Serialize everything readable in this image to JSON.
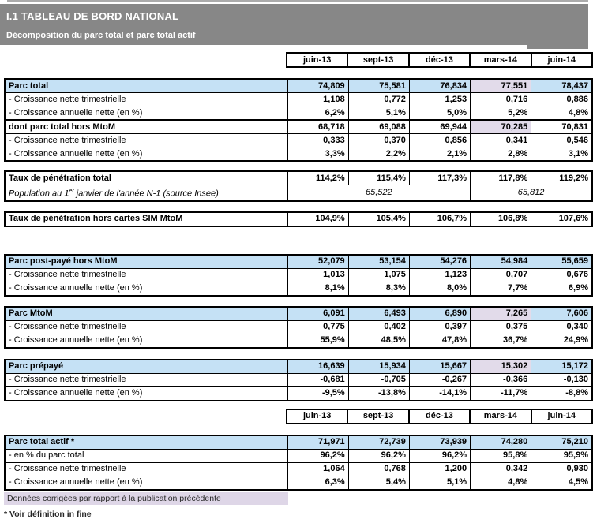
{
  "header": {
    "title": "I.1 TABLEAU DE BORD NATIONAL",
    "subtitle": "Décomposition du parc total et parc total actif"
  },
  "columns": [
    "juin-13",
    "sept-13",
    "déc-13",
    "mars-14",
    "juin-14"
  ],
  "colors": {
    "header_gray": "#878787",
    "section_blue": "#C5E1F5",
    "corrected_lavender": "#E2DBEA",
    "legend_lavender": "#DED6E7",
    "border_black": "#000000"
  },
  "parc_total": {
    "rows": [
      {
        "label": "Parc total",
        "values": [
          "74,809",
          "75,581",
          "76,834",
          "77,551",
          "78,437"
        ]
      },
      {
        "label": "- Croissance nette trimestrielle",
        "values": [
          "1,108",
          "0,772",
          "1,253",
          "0,716",
          "0,886"
        ]
      },
      {
        "label": "- Croissance annuelle nette (en %)",
        "values": [
          "6,2%",
          "5,1%",
          "5,0%",
          "5,2%",
          "4,8%"
        ]
      },
      {
        "label": "dont parc total hors MtoM",
        "values": [
          "68,718",
          "69,088",
          "69,944",
          "70,285",
          "70,831"
        ]
      },
      {
        "label": "- Croissance nette trimestrielle",
        "values": [
          "0,333",
          "0,370",
          "0,856",
          "0,341",
          "0,546"
        ]
      },
      {
        "label": "- Croissance annuelle nette (en %)",
        "values": [
          "3,3%",
          "2,2%",
          "2,1%",
          "2,8%",
          "3,1%"
        ]
      }
    ]
  },
  "penetration": {
    "taux_total": {
      "label": "Taux de pénétration total",
      "values": [
        "114,2%",
        "115,4%",
        "117,3%",
        "117,8%",
        "119,2%"
      ]
    },
    "population": {
      "label_prefix": "Population au 1",
      "label_sup": "er",
      "label_suffix": " janvier de l'année N-1 (source Insee)",
      "value_left": "65,522",
      "value_right": "65,812"
    },
    "taux_hors_mtom": {
      "label": "Taux de pénétration hors cartes SIM MtoM",
      "values": [
        "104,9%",
        "105,4%",
        "106,7%",
        "106,8%",
        "107,6%"
      ]
    }
  },
  "post_paye": {
    "rows": [
      {
        "label": "Parc post-payé hors MtoM",
        "values": [
          "52,079",
          "53,154",
          "54,276",
          "54,984",
          "55,659"
        ]
      },
      {
        "label": "- Croissance nette trimestrielle",
        "values": [
          "1,013",
          "1,075",
          "1,123",
          "0,707",
          "0,676"
        ]
      },
      {
        "label": "- Croissance annuelle nette (en %)",
        "values": [
          "8,1%",
          "8,3%",
          "8,0%",
          "7,7%",
          "6,9%"
        ]
      }
    ]
  },
  "mtom": {
    "rows": [
      {
        "label": "Parc MtoM",
        "values": [
          "6,091",
          "6,493",
          "6,890",
          "7,265",
          "7,606"
        ]
      },
      {
        "label": "- Croissance nette trimestrielle",
        "values": [
          "0,775",
          "0,402",
          "0,397",
          "0,375",
          "0,340"
        ]
      },
      {
        "label": "- Croissance annuelle nette (en %)",
        "values": [
          "55,9%",
          "48,5%",
          "47,8%",
          "36,7%",
          "24,9%"
        ]
      }
    ]
  },
  "prepaye": {
    "rows": [
      {
        "label": "Parc prépayé",
        "values": [
          "16,639",
          "15,934",
          "15,667",
          "15,302",
          "15,172"
        ]
      },
      {
        "label": "- Croissance nette trimestrielle",
        "values": [
          "-0,681",
          "-0,705",
          "-0,267",
          "-0,366",
          "-0,130"
        ]
      },
      {
        "label": "- Croissance annuelle nette (en %)",
        "values": [
          "-9,5%",
          "-13,8%",
          "-14,1%",
          "-11,7%",
          "-8,8%"
        ]
      }
    ]
  },
  "parc_actif": {
    "rows": [
      {
        "label": "Parc total actif *",
        "values": [
          "71,971",
          "72,739",
          "73,939",
          "74,280",
          "75,210"
        ]
      },
      {
        "label": "- en % du parc total",
        "values": [
          "96,2%",
          "96,2%",
          "96,2%",
          "95,8%",
          "95,9%"
        ]
      },
      {
        "label": "- Croissance nette trimestrielle",
        "values": [
          "1,064",
          "0,768",
          "1,200",
          "0,342",
          "0,930"
        ]
      },
      {
        "label": "- Croissance annuelle nette (en %)",
        "values": [
          "6,3%",
          "5,4%",
          "5,1%",
          "4,8%",
          "4,5%"
        ]
      }
    ]
  },
  "footer": {
    "legend": "Données corrigées par rapport à la publication précédente",
    "footnote": "* Voir définition in fine"
  }
}
